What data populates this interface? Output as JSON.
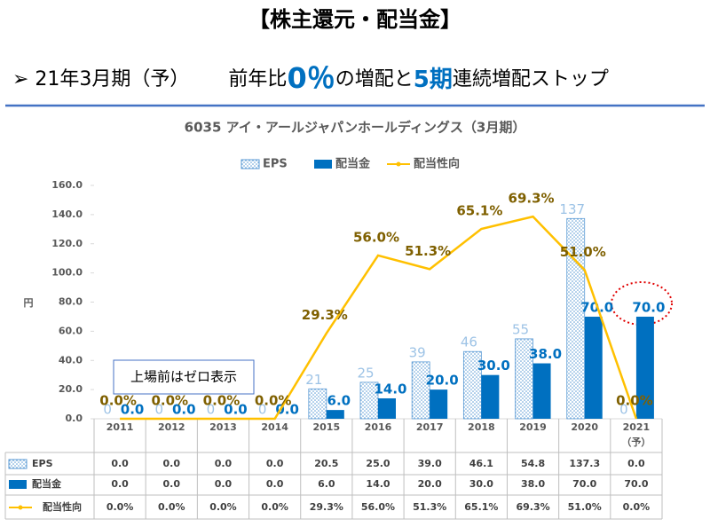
{
  "header": {
    "title": "【株主還元・配当金】",
    "subtitle_parts": [
      "➢ 21年3月期（予）",
      "前年比",
      "0％",
      "の増配と",
      "5期",
      "連続増配ストップ"
    ]
  },
  "chart_data": {
    "type": "bar",
    "title": "6035 アイ・アールジャパンホールディングス（3月期）",
    "y_label": "円",
    "annotation": "上場前はゼロ表示",
    "categories": [
      "2011",
      "2012",
      "2013",
      "2014",
      "2015",
      "2016",
      "2017",
      "2018",
      "2019",
      "2020",
      "2021\n（予）"
    ],
    "ylim": [
      0,
      160
    ],
    "yticks": [
      {
        "value": 0,
        "label": "0.0"
      },
      {
        "value": 20,
        "label": "20.0"
      },
      {
        "value": 40,
        "label": "40.0"
      },
      {
        "value": 60,
        "label": "60.0"
      },
      {
        "value": 80,
        "label": "80.0"
      },
      {
        "value": 100,
        "label": "100.0"
      },
      {
        "value": 120,
        "label": "120.0"
      },
      {
        "value": 140,
        "label": "140.0"
      },
      {
        "value": 160,
        "label": "160.0"
      }
    ],
    "y2lim": [
      0,
      80
    ],
    "series": [
      {
        "name": "EPS",
        "type": "bar",
        "pattern": "dots",
        "color": "#5b9bd5",
        "label_color": "#9dc3e6",
        "values": [
          0,
          0,
          0,
          0,
          20.5,
          25,
          39,
          46.1,
          54.8,
          137.3,
          0
        ],
        "value_labels": [
          "0",
          "0",
          "0",
          "0",
          "21",
          "25",
          "39",
          "46",
          "55",
          "137",
          "0"
        ],
        "table_labels": [
          "0.0",
          "0.0",
          "0.0",
          "0.0",
          "20.5",
          "25.0",
          "39.0",
          "46.1",
          "54.8",
          "137.3",
          "0.0"
        ]
      },
      {
        "name": "配当金",
        "type": "bar",
        "color": "#0070c0",
        "label_color": "#0070c0",
        "values": [
          0,
          0,
          0,
          0,
          6,
          14,
          20,
          30,
          38,
          70,
          70
        ],
        "value_labels": [
          "0.0",
          "0.0",
          "0.0",
          "0.0",
          "6.0",
          "14.0",
          "20.0",
          "30.0",
          "38.0",
          "70.0",
          "70.0"
        ],
        "table_labels": [
          "0.0",
          "0.0",
          "0.0",
          "0.0",
          "6.0",
          "14.0",
          "20.0",
          "30.0",
          "38.0",
          "70.0",
          "70.0"
        ]
      },
      {
        "name": "配当性向",
        "type": "line",
        "axis": "y2",
        "color": "#ffc000",
        "label_color": "#7f6000",
        "values": [
          0,
          0,
          0,
          0,
          29.3,
          56,
          51.3,
          65.1,
          69.3,
          51,
          0
        ],
        "value_labels": [
          "0.0%",
          "0.0%",
          "0.0%",
          "0.0%",
          "29.3%",
          "56.0%",
          "51.3%",
          "65.1%",
          "69.3%",
          "51.0%",
          "0.0%"
        ],
        "table_labels": [
          "0.0%",
          "0.0%",
          "0.0%",
          "0.0%",
          "29.3%",
          "56.0%",
          "51.3%",
          "65.1%",
          "69.3%",
          "51.0%",
          "0.0%"
        ]
      }
    ]
  }
}
